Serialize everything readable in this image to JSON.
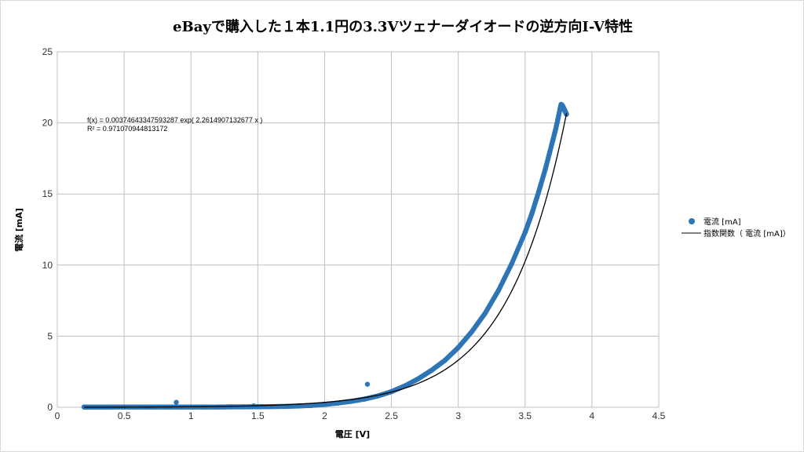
{
  "chart_data": {
    "type": "scatter",
    "title": "eBayで購入した１本1.1円の3.3Vツェナーダイオードの逆方向I-V特性",
    "xlabel": "電圧 [V]",
    "ylabel": "電流 [mA]",
    "xlim": [
      0,
      4.5
    ],
    "ylim": [
      0,
      25
    ],
    "x_ticks": [
      "0",
      "0.5",
      "1",
      "1.5",
      "2",
      "2.5",
      "3",
      "3.5",
      "4",
      "4.5"
    ],
    "y_ticks": [
      "0",
      "5",
      "10",
      "15",
      "20",
      "25"
    ],
    "grid": true,
    "legend_position": "right",
    "series": [
      {
        "name": "電流 [mA]",
        "kind": "scatter",
        "color": "#2e75b6",
        "points": [
          [
            0.2,
            0.02
          ],
          [
            0.25,
            0.02
          ],
          [
            0.3,
            0.02
          ],
          [
            0.35,
            0.02
          ],
          [
            0.4,
            0.02
          ],
          [
            0.5,
            0.02
          ],
          [
            0.6,
            0.02
          ],
          [
            0.7,
            0.02
          ],
          [
            0.8,
            0.02
          ],
          [
            0.89,
            0.35
          ],
          [
            0.9,
            0.02
          ],
          [
            1.0,
            0.02
          ],
          [
            1.1,
            0.02
          ],
          [
            1.2,
            0.02
          ],
          [
            1.3,
            0.03
          ],
          [
            1.4,
            0.03
          ],
          [
            1.47,
            0.1
          ],
          [
            1.5,
            0.04
          ],
          [
            1.6,
            0.05
          ],
          [
            1.7,
            0.06
          ],
          [
            1.8,
            0.09
          ],
          [
            1.9,
            0.13
          ],
          [
            2.0,
            0.2
          ],
          [
            2.1,
            0.3
          ],
          [
            2.2,
            0.42
          ],
          [
            2.3,
            0.58
          ],
          [
            2.32,
            1.62
          ],
          [
            2.4,
            0.8
          ],
          [
            2.5,
            1.1
          ],
          [
            2.6,
            1.5
          ],
          [
            2.7,
            2.0
          ],
          [
            2.8,
            2.6
          ],
          [
            2.9,
            3.3
          ],
          [
            3.0,
            4.2
          ],
          [
            3.1,
            5.3
          ],
          [
            3.2,
            6.6
          ],
          [
            3.3,
            8.2
          ],
          [
            3.4,
            10.1
          ],
          [
            3.5,
            12.3
          ],
          [
            3.55,
            13.6
          ],
          [
            3.6,
            15.1
          ],
          [
            3.65,
            16.7
          ],
          [
            3.7,
            18.5
          ],
          [
            3.73,
            19.6
          ],
          [
            3.76,
            20.9
          ],
          [
            3.77,
            21.3
          ],
          [
            3.78,
            21.2
          ],
          [
            3.79,
            21.0
          ],
          [
            3.8,
            20.8
          ],
          [
            3.81,
            20.6
          ]
        ]
      },
      {
        "name": "指数関数（ 電流 [mA]）",
        "kind": "line",
        "color": "#000000",
        "function": "0.00374643347593287*exp(2.2614907132677*x)",
        "x_range": [
          0.2,
          3.81
        ]
      }
    ],
    "annotations": [
      "f(x) = 0.00374643347593287 exp( 2.2614907132677 x )",
      "R² = 0.971070944813172"
    ]
  }
}
